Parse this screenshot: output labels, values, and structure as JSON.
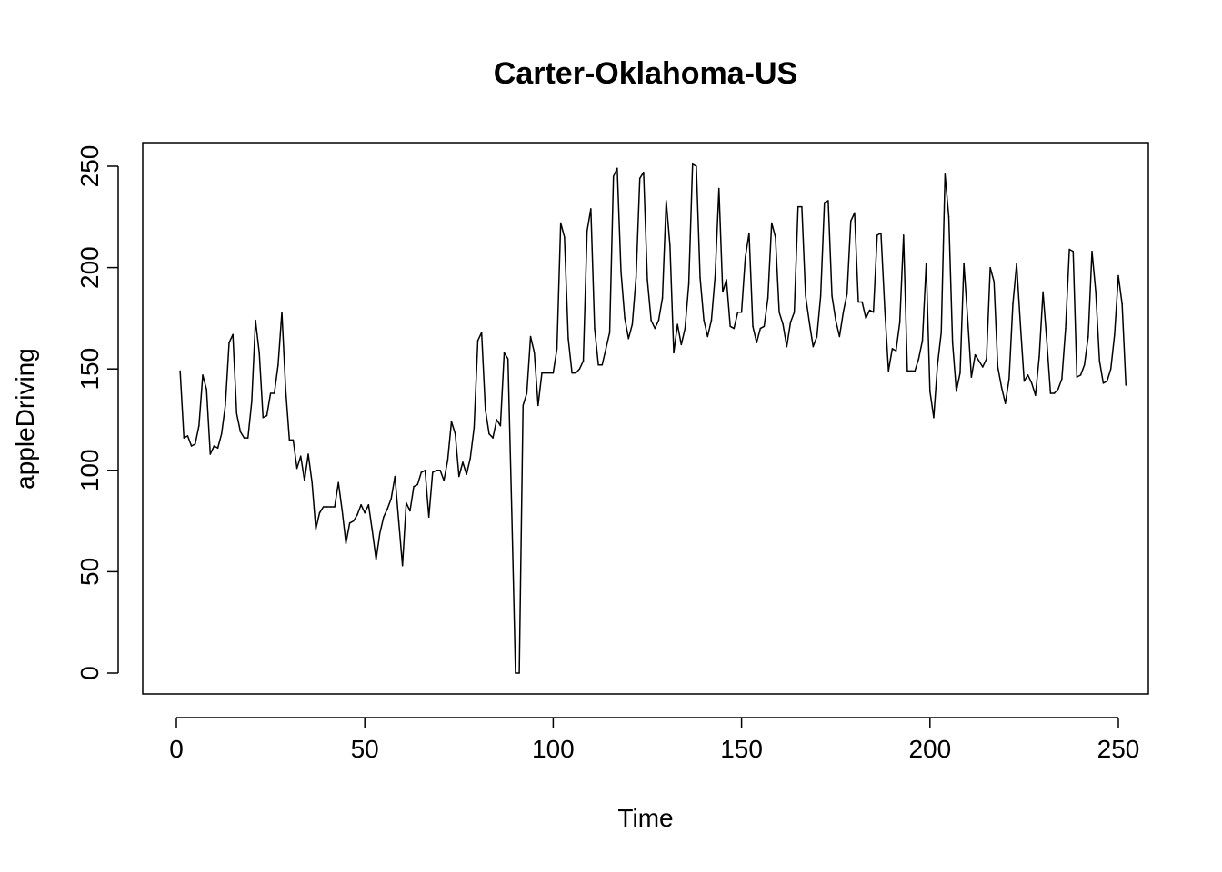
{
  "chart_data": {
    "type": "line",
    "title": "Carter-Oklahoma-US",
    "xlabel": "Time",
    "ylabel": "appleDriving",
    "xlim": [
      1,
      248
    ],
    "ylim": [
      0,
      251
    ],
    "xticks": [
      0,
      50,
      100,
      150,
      200,
      250
    ],
    "yticks": [
      0,
      50,
      100,
      150,
      200,
      250
    ],
    "grid": false,
    "series": [
      {
        "values": [
          149,
          116,
          117,
          112,
          113,
          122,
          147,
          140,
          108,
          112,
          111,
          118,
          132,
          163,
          167,
          128,
          119,
          116,
          116,
          134,
          174,
          158,
          126,
          127,
          138,
          138,
          152,
          178,
          140,
          115,
          115,
          101,
          107,
          95,
          108,
          94,
          71,
          79,
          82,
          82,
          82,
          82,
          94,
          80,
          64,
          74,
          75,
          78,
          83,
          79,
          83,
          70,
          56,
          69,
          77,
          81,
          86,
          97,
          75,
          53,
          84,
          80,
          92,
          93,
          99,
          100,
          77,
          99,
          100,
          100,
          95,
          105,
          124,
          118,
          97,
          104,
          98,
          106,
          121,
          164,
          168,
          130,
          118,
          116,
          125,
          122,
          158,
          155,
          80,
          0,
          0,
          132,
          138,
          166,
          158,
          132,
          148,
          148,
          148,
          148,
          160,
          222,
          215,
          165,
          148,
          148,
          150,
          154,
          218,
          229,
          170,
          152,
          152,
          160,
          168,
          245,
          249,
          198,
          175,
          165,
          172,
          195,
          244,
          247,
          194,
          174,
          170,
          174,
          185,
          233,
          211,
          158,
          172,
          162,
          170,
          192,
          251,
          250,
          195,
          174,
          166,
          174,
          196,
          239,
          188,
          194,
          171,
          170,
          178,
          178,
          205,
          217,
          171,
          163,
          170,
          171,
          185,
          222,
          215,
          178,
          172,
          161,
          173,
          178,
          230,
          230,
          186,
          173,
          161,
          166,
          186,
          232,
          233,
          186,
          174,
          166,
          178,
          187,
          223,
          227,
          183,
          183,
          175,
          179,
          178,
          216,
          217,
          180,
          149,
          160,
          159,
          173,
          216,
          149,
          149,
          149,
          155,
          164,
          202,
          139,
          126,
          152,
          168,
          246,
          225,
          163,
          139,
          148,
          202,
          175,
          146,
          157,
          154,
          151,
          155,
          200,
          193,
          151,
          141,
          133,
          145,
          182,
          202,
          172,
          144,
          147,
          143,
          137,
          156,
          188,
          164,
          138,
          138,
          140,
          145,
          170,
          209,
          208,
          146,
          147,
          152,
          166,
          208,
          188,
          154,
          143,
          144,
          150,
          167,
          196,
          182,
          142
        ]
      }
    ]
  }
}
